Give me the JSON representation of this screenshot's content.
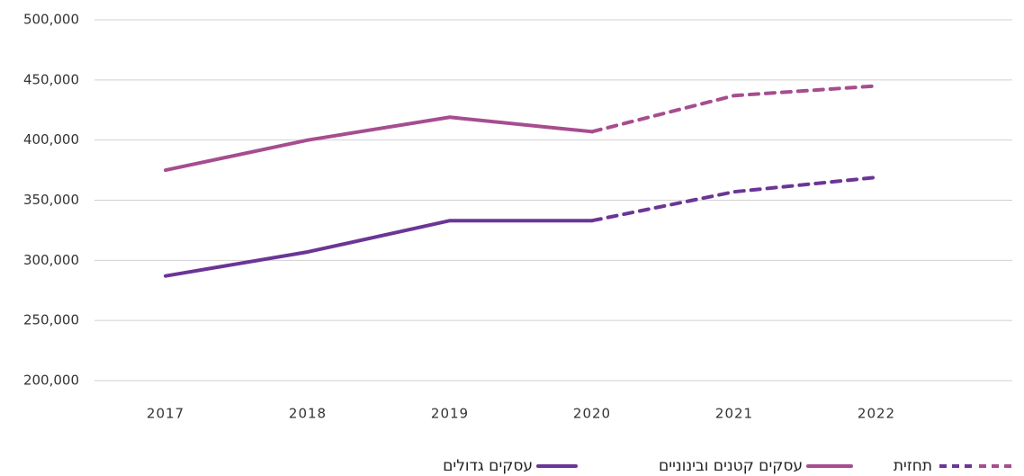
{
  "chart_data": {
    "type": "line",
    "categories": [
      "2017",
      "2018",
      "2019",
      "2020",
      "2021",
      "2022"
    ],
    "series": [
      {
        "name": "עסקים קטנים ובינוניים",
        "color": "#a64d8f",
        "values": [
          375000,
          400000,
          419000,
          407000,
          437000,
          445000
        ]
      },
      {
        "name": "עסקים גדולים",
        "color": "#6b3596",
        "values": [
          287000,
          307000,
          333000,
          333000,
          357000,
          369000
        ]
      }
    ],
    "forecast_name": "תחזית",
    "forecast_from": "2020",
    "ylim": [
      200000,
      500000
    ],
    "yticks": [
      {
        "value": 200000,
        "label": "200,000"
      },
      {
        "value": 250000,
        "label": "250,000"
      },
      {
        "value": 300000,
        "label": "300,000"
      },
      {
        "value": 350000,
        "label": "350,000"
      },
      {
        "value": 400000,
        "label": "400,000"
      },
      {
        "value": 450000,
        "label": "450,000"
      },
      {
        "value": 500000,
        "label": "500,000"
      }
    ],
    "grid": true
  }
}
